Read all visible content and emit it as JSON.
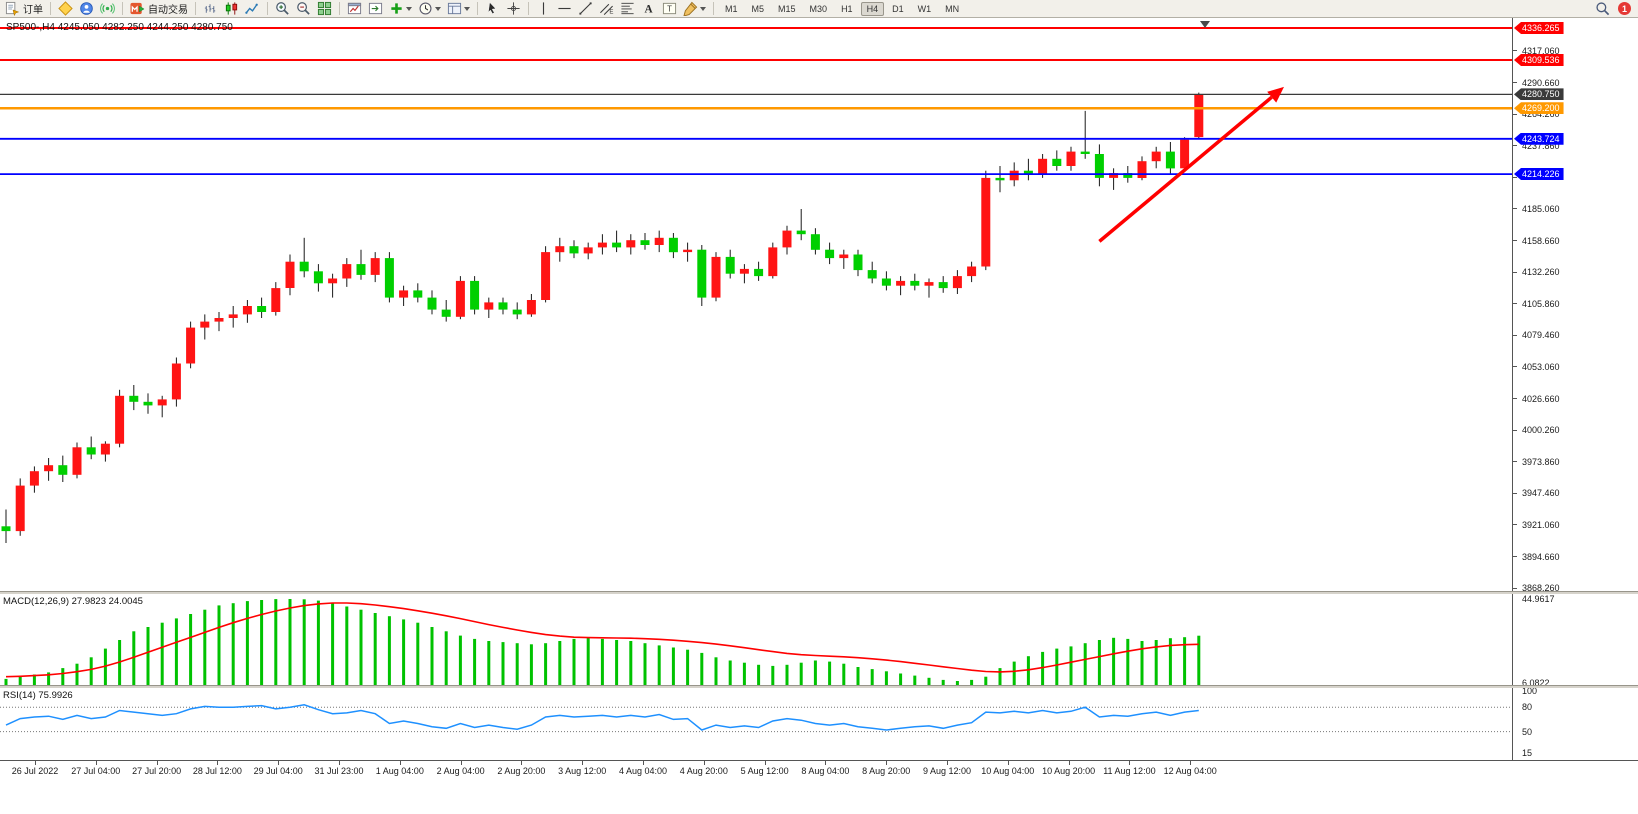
{
  "toolbar": {
    "new_order_label": "订单",
    "autotrading_label": "自动交易",
    "timeframes": [
      "M1",
      "M5",
      "M15",
      "M30",
      "H1",
      "H4",
      "D1",
      "W1",
      "MN"
    ],
    "active_timeframe": "H4",
    "notification_count": "1",
    "items": [
      {
        "type": "button",
        "name": "new-order-button",
        "icon": "order",
        "label_key": "new_order_label"
      },
      {
        "type": "sep"
      },
      {
        "type": "icon",
        "name": "chart-wizard-button",
        "icon": "wizard"
      },
      {
        "type": "icon",
        "name": "market-watch-button",
        "icon": "market"
      },
      {
        "type": "icon",
        "name": "signals-button",
        "icon": "signals"
      },
      {
        "type": "sep"
      },
      {
        "type": "button",
        "name": "autotrading-button",
        "icon": "autotrading",
        "label_key": "autotrading_label"
      },
      {
        "type": "sep"
      },
      {
        "type": "icon",
        "name": "bar-chart-button",
        "icon": "bars"
      },
      {
        "type": "icon",
        "name": "candlestick-chart-button",
        "icon": "candles"
      },
      {
        "type": "icon",
        "name": "line-chart-button",
        "icon": "linechart"
      },
      {
        "type": "sep"
      },
      {
        "type": "icon",
        "name": "zoom-in-button",
        "icon": "zoomin"
      },
      {
        "type": "icon",
        "name": "zoom-out-button",
        "icon": "zoomout"
      },
      {
        "type": "icon",
        "name": "tile-windows-button",
        "icon": "tile"
      },
      {
        "type": "sep"
      },
      {
        "type": "icon",
        "name": "new-chart-button",
        "icon": "newchart"
      },
      {
        "type": "icon",
        "name": "auto-scroll-button",
        "icon": "shift"
      },
      {
        "type": "icon",
        "name": "add-indicator-button",
        "icon": "plus",
        "dropdown": true
      },
      {
        "type": "icon",
        "name": "periods-button",
        "icon": "clock",
        "dropdown": true
      },
      {
        "type": "icon",
        "name": "templates-button",
        "icon": "template",
        "dropdown": true
      },
      {
        "type": "sep"
      },
      {
        "type": "icon",
        "name": "cursor-button",
        "icon": "cursor"
      },
      {
        "type": "icon",
        "name": "crosshair-button",
        "icon": "crosshair"
      },
      {
        "type": "sep"
      },
      {
        "type": "icon",
        "name": "vertical-line-button",
        "icon": "vline"
      },
      {
        "type": "icon",
        "name": "horizontal-line-button",
        "icon": "hline"
      },
      {
        "type": "icon",
        "name": "trendline-button",
        "icon": "trendline"
      },
      {
        "type": "icon",
        "name": "equidistant-channel-button",
        "icon": "channel"
      },
      {
        "type": "icon",
        "name": "fibonacci-button",
        "icon": "fibo"
      },
      {
        "type": "icon",
        "name": "text-button",
        "icon": "text"
      },
      {
        "type": "icon",
        "name": "text-label-button",
        "icon": "label"
      },
      {
        "type": "icon",
        "name": "shapes-button",
        "icon": "shapes",
        "dropdown": true
      },
      {
        "type": "sep"
      },
      {
        "type": "timeframes"
      },
      {
        "type": "spacer"
      },
      {
        "type": "icon",
        "name": "search-button",
        "icon": "search"
      },
      {
        "type": "badge",
        "name": "notification-badge"
      }
    ]
  },
  "chart": {
    "title": "SP500-,H4 4245.050 4282.250 4244.250 4280.750"
  },
  "chart_data": {
    "type": "candlestick",
    "symbol": "SP500-",
    "timeframe": "H4",
    "ohlc_display": {
      "open": "4245.050",
      "high": "4282.250",
      "low": "4244.250",
      "close": "4280.750"
    },
    "price_range": {
      "top": 4344.6,
      "bottom": 3866.8
    },
    "colors": {
      "bull": "#ff1414",
      "bear": "#00cf00",
      "wick": "#1a1a1a",
      "macd_hist": "#00c200",
      "macd_signal": "#ff0000",
      "rsi_line": "#1e90ff"
    },
    "candles": [
      [
        3920,
        3934,
        3906,
        3916
      ],
      [
        3916,
        3960,
        3912,
        3954
      ],
      [
        3954,
        3970,
        3948,
        3966
      ],
      [
        3966,
        3977,
        3958,
        3971
      ],
      [
        3971,
        3979,
        3957,
        3963
      ],
      [
        3963,
        3990,
        3960,
        3986
      ],
      [
        3986,
        3995,
        3976,
        3980
      ],
      [
        3980,
        3991,
        3974,
        3989
      ],
      [
        3989,
        4034,
        3986,
        4029
      ],
      [
        4029,
        4038,
        4017,
        4024
      ],
      [
        4024,
        4031,
        4014,
        4021
      ],
      [
        4021,
        4029,
        4011,
        4026
      ],
      [
        4026,
        4061,
        4020,
        4056
      ],
      [
        4056,
        4091,
        4052,
        4086
      ],
      [
        4086,
        4097,
        4076,
        4091
      ],
      [
        4091,
        4099,
        4083,
        4094
      ],
      [
        4094,
        4104,
        4086,
        4097
      ],
      [
        4097,
        4109,
        4090,
        4104
      ],
      [
        4104,
        4111,
        4094,
        4099
      ],
      [
        4099,
        4124,
        4096,
        4119
      ],
      [
        4119,
        4147,
        4113,
        4141
      ],
      [
        4141,
        4161,
        4128,
        4133
      ],
      [
        4133,
        4139,
        4116,
        4123
      ],
      [
        4123,
        4131,
        4111,
        4127
      ],
      [
        4127,
        4144,
        4120,
        4139
      ],
      [
        4139,
        4151,
        4126,
        4130
      ],
      [
        4130,
        4149,
        4124,
        4144
      ],
      [
        4144,
        4149,
        4107,
        4111
      ],
      [
        4111,
        4121,
        4104,
        4117
      ],
      [
        4117,
        4123,
        4107,
        4111
      ],
      [
        4111,
        4117,
        4097,
        4101
      ],
      [
        4101,
        4109,
        4091,
        4095
      ],
      [
        4095,
        4129,
        4093,
        4125
      ],
      [
        4125,
        4129,
        4097,
        4101
      ],
      [
        4101,
        4111,
        4094,
        4107
      ],
      [
        4107,
        4111,
        4097,
        4101
      ],
      [
        4101,
        4107,
        4093,
        4097
      ],
      [
        4097,
        4114,
        4095,
        4109
      ],
      [
        4109,
        4154,
        4107,
        4149
      ],
      [
        4149,
        4161,
        4141,
        4154
      ],
      [
        4154,
        4159,
        4144,
        4148
      ],
      [
        4148,
        4157,
        4143,
        4153
      ],
      [
        4153,
        4164,
        4147,
        4157
      ],
      [
        4157,
        4167,
        4149,
        4153
      ],
      [
        4153,
        4164,
        4147,
        4159
      ],
      [
        4159,
        4165,
        4151,
        4155
      ],
      [
        4155,
        4167,
        4149,
        4161
      ],
      [
        4161,
        4165,
        4144,
        4149
      ],
      [
        4149,
        4157,
        4141,
        4151
      ],
      [
        4151,
        4155,
        4104,
        4111
      ],
      [
        4111,
        4149,
        4108,
        4145
      ],
      [
        4145,
        4151,
        4127,
        4131
      ],
      [
        4131,
        4139,
        4123,
        4135
      ],
      [
        4135,
        4141,
        4125,
        4129
      ],
      [
        4129,
        4157,
        4127,
        4153
      ],
      [
        4153,
        4171,
        4147,
        4167
      ],
      [
        4167,
        4185,
        4159,
        4164
      ],
      [
        4164,
        4169,
        4147,
        4151
      ],
      [
        4151,
        4157,
        4139,
        4144
      ],
      [
        4144,
        4151,
        4135,
        4147
      ],
      [
        4147,
        4151,
        4129,
        4134
      ],
      [
        4134,
        4141,
        4123,
        4127
      ],
      [
        4127,
        4133,
        4117,
        4121
      ],
      [
        4121,
        4129,
        4113,
        4125
      ],
      [
        4125,
        4131,
        4117,
        4121
      ],
      [
        4121,
        4127,
        4111,
        4124
      ],
      [
        4124,
        4129,
        4115,
        4119
      ],
      [
        4119,
        4134,
        4114,
        4129
      ],
      [
        4129,
        4141,
        4124,
        4137
      ],
      [
        4137,
        4217,
        4134,
        4211
      ],
      [
        4211,
        4221,
        4199,
        4209
      ],
      [
        4209,
        4224,
        4204,
        4217
      ],
      [
        4217,
        4227,
        4209,
        4214
      ],
      [
        4214,
        4231,
        4211,
        4227
      ],
      [
        4227,
        4234,
        4217,
        4221
      ],
      [
        4221,
        4237,
        4217,
        4233
      ],
      [
        4233,
        4267,
        4227,
        4231
      ],
      [
        4231,
        4239,
        4204,
        4211
      ],
      [
        4211,
        4219,
        4201,
        4215
      ],
      [
        4215,
        4221,
        4207,
        4211
      ],
      [
        4211,
        4229,
        4209,
        4225
      ],
      [
        4225,
        4237,
        4219,
        4233
      ],
      [
        4233,
        4241,
        4214,
        4219
      ],
      [
        4219,
        4245,
        4217,
        4243
      ],
      [
        4245.05,
        4282.25,
        4244.25,
        4280.75
      ]
    ],
    "macd": {
      "range": [
        6.0822,
        44.9617
      ],
      "histogram": [
        8,
        9,
        10,
        11,
        13,
        15,
        18,
        22,
        26,
        30,
        32,
        34,
        36,
        38,
        40,
        42,
        43,
        44,
        44.5,
        44.9,
        44.96,
        44.8,
        44.2,
        43,
        41.5,
        40,
        38.5,
        37,
        35.5,
        34,
        32,
        30,
        28,
        26.5,
        25.5,
        25,
        24.5,
        24,
        24.5,
        25.5,
        26.5,
        27,
        26.5,
        26,
        25.5,
        24.5,
        23.5,
        22.5,
        21.5,
        20,
        18,
        16.5,
        15.5,
        14.5,
        14,
        14.5,
        15.5,
        16.5,
        16,
        15,
        13.5,
        12.5,
        11.5,
        10.5,
        9.5,
        8.5,
        7.5,
        7,
        7.5,
        9,
        13,
        16,
        18.5,
        20.5,
        22,
        23,
        24.5,
        26,
        27,
        26.5,
        25.5,
        26,
        26.8,
        27.3,
        27.98
      ],
      "signal": [
        9,
        9.2,
        9.5,
        9.9,
        10.5,
        11.3,
        12.4,
        13.9,
        15.8,
        18,
        20.3,
        22.6,
        24.9,
        27.2,
        29.5,
        31.8,
        34,
        36,
        37.8,
        39.4,
        40.8,
        41.9,
        42.7,
        43.1,
        43.1,
        42.8,
        42.2,
        41.4,
        40.5,
        39.5,
        38.4,
        37.2,
        35.9,
        34.5,
        33.1,
        31.8,
        30.6,
        29.5,
        28.5,
        27.8,
        27.3,
        27.1,
        27,
        26.9,
        26.8,
        26.6,
        26.3,
        25.9,
        25.4,
        24.8,
        24.1,
        23.3,
        22.4,
        21.5,
        20.6,
        19.8,
        19.2,
        18.8,
        18.5,
        18.2,
        17.8,
        17.3,
        16.7,
        16,
        15.2,
        14.4,
        13.6,
        12.8,
        12,
        11.4,
        11.2,
        11.5,
        12.2,
        13.2,
        14.4,
        15.7,
        17,
        18.3,
        19.6,
        20.8,
        21.9,
        22.8,
        23.5,
        23.8,
        24.0
      ]
    },
    "rsi": {
      "range": [
        15,
        100
      ],
      "values": [
        58,
        66,
        68,
        69,
        65,
        70,
        66,
        68,
        76,
        74,
        72,
        70,
        72,
        78,
        81,
        80,
        80,
        81,
        82,
        78,
        80,
        83,
        77,
        72,
        73,
        76,
        72,
        60,
        63,
        60,
        56,
        54,
        60,
        55,
        58,
        55,
        53,
        58,
        68,
        70,
        68,
        69,
        70,
        68,
        70,
        68,
        71,
        65,
        66,
        52,
        58,
        55,
        57,
        55,
        63,
        66,
        64,
        60,
        58,
        60,
        56,
        54,
        52,
        54,
        56,
        57,
        54,
        58,
        61,
        74,
        73,
        75,
        73,
        76,
        73,
        75,
        80,
        68,
        70,
        69,
        72,
        74,
        70,
        74,
        76
      ]
    },
    "hlines": [
      {
        "price": 4336.265,
        "label": "4336.265",
        "color": "#ff0000",
        "width": 2
      },
      {
        "price": 4309.536,
        "label": "4309.536",
        "color": "#ff0000",
        "width": 2
      },
      {
        "price": 4280.75,
        "label": "4280.750",
        "color": "#3a3a3a",
        "width": 1.2
      },
      {
        "price": 4269.2,
        "label": "4269.200",
        "color": "#ff9900",
        "width": 2.5
      },
      {
        "price": 4243.724,
        "label": "4243.724",
        "color": "#0000ff",
        "width": 1.8
      },
      {
        "price": 4214.226,
        "label": "4214.226",
        "color": "#0000ff",
        "width": 1.8
      }
    ],
    "trend_arrow": {
      "from_bar": 77,
      "from_price": 4158,
      "to_bar": 90,
      "to_price": 4287,
      "color": "#ff0000",
      "width": 3.5
    }
  },
  "price_axis": {
    "ticks": [
      "4317.060",
      "4290.660",
      "4264.260",
      "4237.860",
      "4211.460",
      "4185.060",
      "4158.660",
      "4132.260",
      "4105.860",
      "4079.460",
      "4053.060",
      "4026.660",
      "4000.260",
      "3973.860",
      "3947.460",
      "3921.060",
      "3894.660",
      "3868.260"
    ]
  },
  "macd_panel": {
    "label": "MACD(12,26,9) 27.9823 24.0045",
    "axis_labels": [
      {
        "text": "44.9617",
        "value": 44.9617
      },
      {
        "text": "6.0822",
        "value": 6.0822
      }
    ]
  },
  "rsi_panel": {
    "label": "RSI(14) 75.9926",
    "axis_labels": [
      {
        "text": "100",
        "value": 100
      },
      {
        "text": "80",
        "value": 80
      },
      {
        "text": "50",
        "value": 50
      },
      {
        "text": "15",
        "value": 15
      }
    ],
    "levels": [
      80,
      50
    ]
  },
  "time_axis": {
    "labels": [
      "26 Jul 2022",
      "27 Jul 04:00",
      "27 Jul 20:00",
      "28 Jul 12:00",
      "29 Jul 04:00",
      "31 Jul 23:00",
      "1 Aug 04:00",
      "2 Aug 04:00",
      "2 Aug 20:00",
      "3 Aug 12:00",
      "4 Aug 04:00",
      "4 Aug 20:00",
      "5 Aug 12:00",
      "8 Aug 04:00",
      "8 Aug 20:00",
      "9 Aug 12:00",
      "10 Aug 04:00",
      "10 Aug 20:00",
      "11 Aug 12:00",
      "12 Aug 04:00"
    ]
  }
}
